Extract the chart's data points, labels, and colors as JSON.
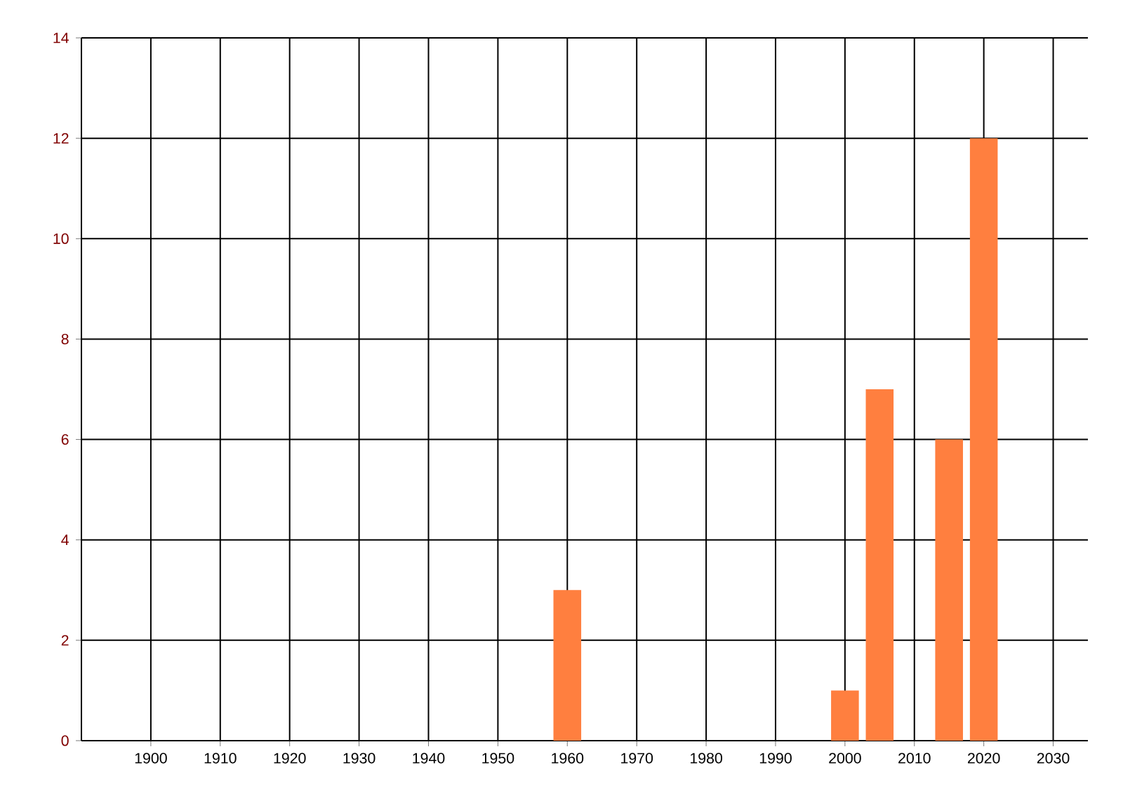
{
  "chart_data": {
    "type": "bar",
    "x": [
      1960,
      2000,
      2005,
      2015,
      2020
    ],
    "values": [
      3,
      1,
      7,
      6,
      12
    ],
    "color": "#ff7f3f",
    "xlim": [
      1890,
      2035
    ],
    "xticks": [
      1900,
      1910,
      1920,
      1930,
      1940,
      1950,
      1960,
      1970,
      1980,
      1990,
      2000,
      2010,
      2020,
      2030
    ],
    "ylim": [
      0,
      14
    ],
    "yticks": [
      0,
      2,
      4,
      6,
      8,
      10,
      12,
      14
    ],
    "grid": true
  }
}
